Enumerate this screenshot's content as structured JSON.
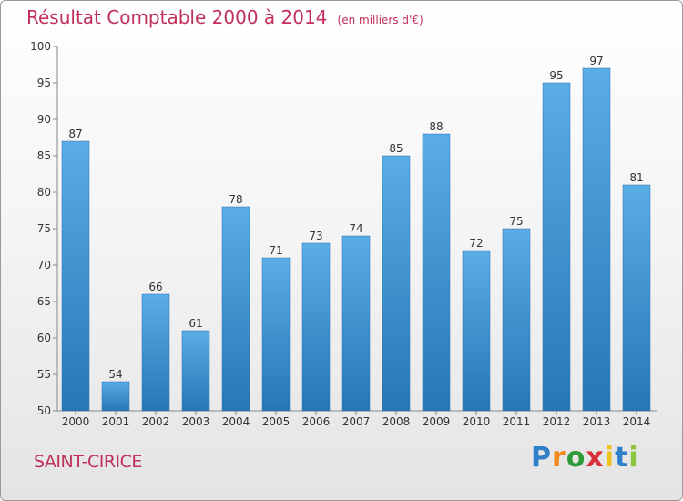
{
  "chart_data": {
    "type": "bar",
    "title": "Résultat Comptable 2000 à 2014",
    "unit_note": "(en milliers d'€)",
    "categories": [
      "2000",
      "2001",
      "2002",
      "2003",
      "2004",
      "2005",
      "2006",
      "2007",
      "2008",
      "2009",
      "2010",
      "2011",
      "2012",
      "2013",
      "2014"
    ],
    "values": [
      87,
      54,
      66,
      61,
      78,
      71,
      73,
      74,
      85,
      88,
      72,
      75,
      95,
      97,
      81
    ],
    "ylim": [
      50,
      100
    ],
    "yticks": [
      50,
      55,
      60,
      65,
      70,
      75,
      80,
      85,
      90,
      95,
      100
    ],
    "xlabel": "",
    "ylabel": "",
    "grid": false,
    "bar_color_top": "#5aade6",
    "bar_color_bottom": "#2677b5",
    "text_color": "#c0305a"
  },
  "location": "SAINT-CIRICE",
  "brand": {
    "letters": [
      "P",
      "r",
      "o",
      "x",
      "i",
      "t",
      "i"
    ],
    "colors": [
      "#2f7fc9",
      "#f08a1c",
      "#2f9a3a",
      "#d9313a",
      "#f0c21c",
      "#2f7fc9",
      "#8cc63f"
    ]
  }
}
